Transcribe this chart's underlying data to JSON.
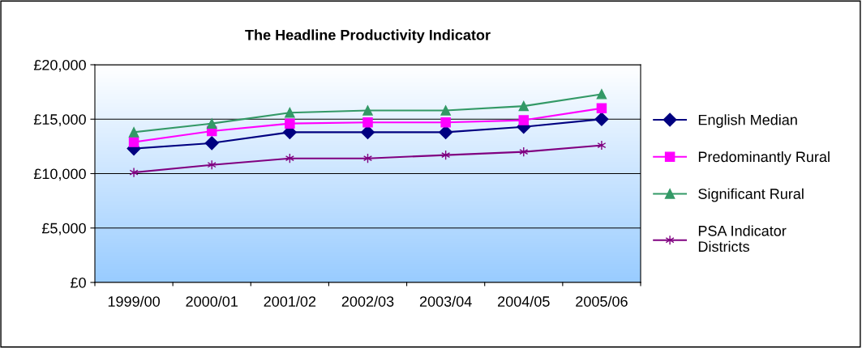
{
  "chart_data": {
    "type": "line",
    "title": "The Headline Productivity Indicator",
    "categories": [
      "1999/00",
      "2000/01",
      "2001/02",
      "2002/03",
      "2003/04",
      "2004/05",
      "2005/06"
    ],
    "series": [
      {
        "name": "English Median",
        "color": "#000080",
        "marker": "diamond",
        "values": [
          12300,
          12800,
          13800,
          13800,
          13800,
          14300,
          15000
        ]
      },
      {
        "name": "Predominantly Rural",
        "color": "#ff00ff",
        "marker": "square",
        "values": [
          12900,
          13900,
          14600,
          14700,
          14700,
          14900,
          16000
        ]
      },
      {
        "name": "Significant Rural",
        "color": "#339966",
        "marker": "triangle",
        "values": [
          13800,
          14600,
          15600,
          15800,
          15800,
          16200,
          17300
        ]
      },
      {
        "name": "PSA Indicator\nDistricts",
        "color": "#800080",
        "marker": "cross",
        "values": [
          10100,
          10800,
          11400,
          11400,
          11700,
          12000,
          12600
        ]
      }
    ],
    "ylim": [
      0,
      20000
    ],
    "yticks": [
      {
        "value": 0,
        "label": "£0"
      },
      {
        "value": 5000,
        "label": "£5,000"
      },
      {
        "value": 10000,
        "label": "£10,000"
      },
      {
        "value": 15000,
        "label": "£15,000"
      },
      {
        "value": 20000,
        "label": "£20,000"
      }
    ],
    "grid": "y",
    "legend": "right",
    "line_style": "solid"
  }
}
